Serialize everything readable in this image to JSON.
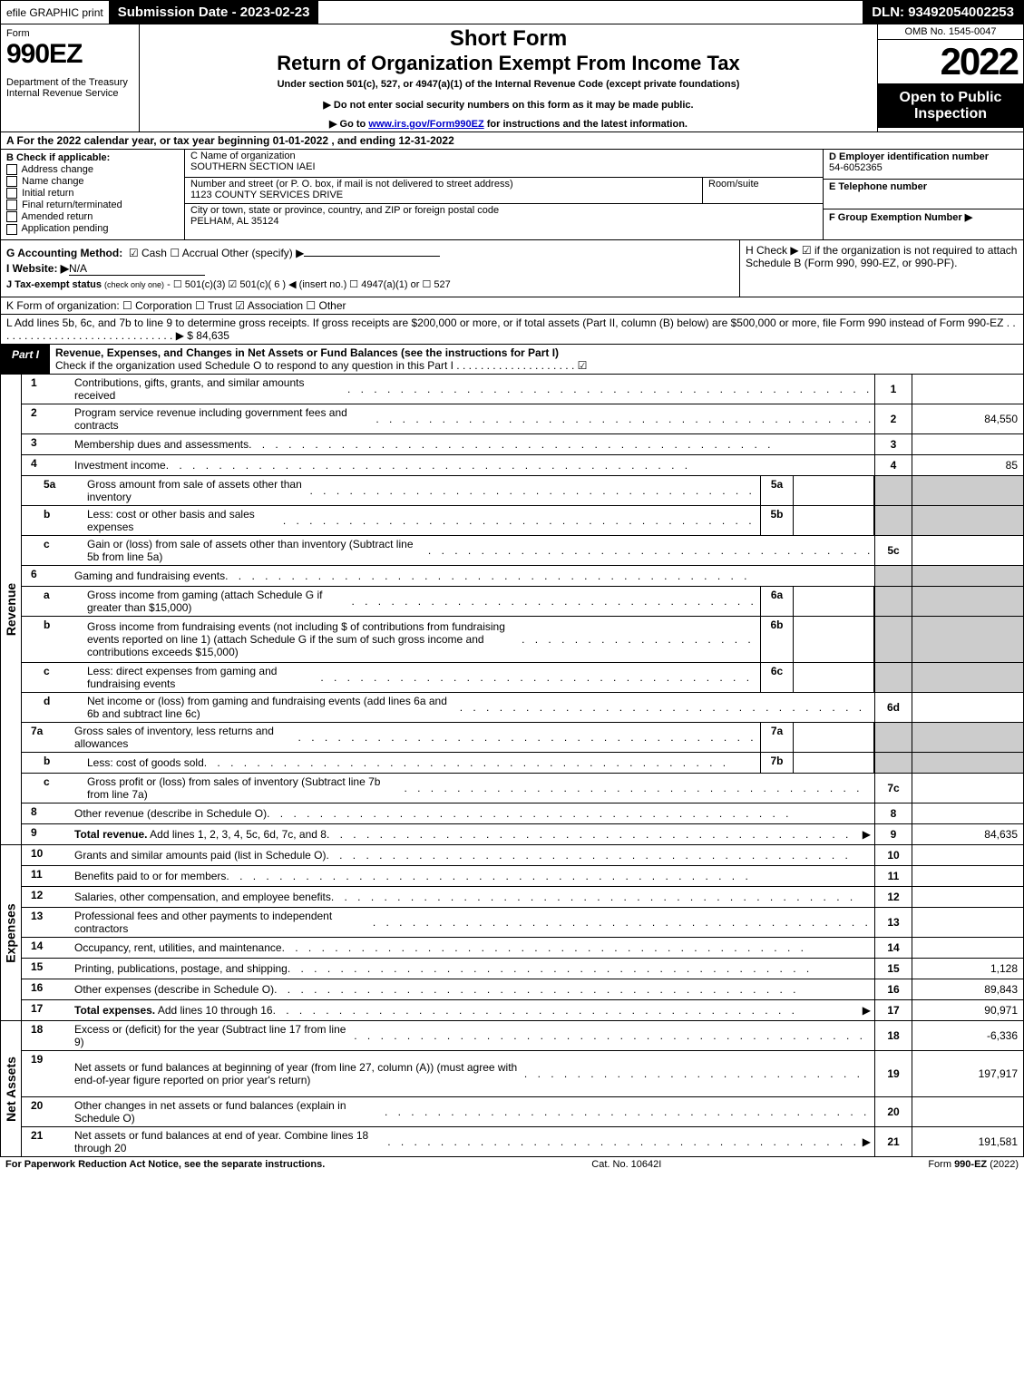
{
  "topbar": {
    "efile": "efile GRAPHIC print",
    "submission": "Submission Date - 2023-02-23",
    "dln": "DLN: 93492054002253"
  },
  "header": {
    "form_word": "Form",
    "form_number": "990EZ",
    "department": "Department of the Treasury\nInternal Revenue Service",
    "short_form": "Short Form",
    "return_title": "Return of Organization Exempt From Income Tax",
    "under_section": "Under section 501(c), 527, or 4947(a)(1) of the Internal Revenue Code (except private foundations)",
    "do_not": "▶ Do not enter social security numbers on this form as it may be made public.",
    "goto": "▶ Go to www.irs.gov/Form990EZ for instructions and the latest information.",
    "irs_link": "www.irs.gov/Form990EZ",
    "omb": "OMB No. 1545-0047",
    "year": "2022",
    "open_to_public": "Open to Public Inspection"
  },
  "row_a": "A  For the 2022 calendar year, or tax year beginning 01-01-2022  , and ending 12-31-2022",
  "section_b": {
    "label": "B  Check if applicable:",
    "items": [
      "Address change",
      "Name change",
      "Initial return",
      "Final return/terminated",
      "Amended return",
      "Application pending"
    ],
    "c_label": "C Name of organization",
    "c_value": "SOUTHERN SECTION IAEI",
    "street_label": "Number and street (or P. O. box, if mail is not delivered to street address)",
    "street_value": "1123 COUNTY SERVICES DRIVE",
    "room_label": "Room/suite",
    "city_label": "City or town, state or province, country, and ZIP or foreign postal code",
    "city_value": "PELHAM, AL  35124",
    "d_label": "D Employer identification number",
    "d_value": "54-6052365",
    "e_label": "E Telephone number",
    "f_label": "F Group Exemption Number  ▶"
  },
  "section_ghi": {
    "g_label": "G Accounting Method:",
    "g_options": "☑ Cash  ☐ Accrual  Other (specify) ▶",
    "i_label": "I Website: ▶",
    "i_value": "N/A",
    "j_label": "J Tax-exempt status (check only one) - ☐ 501(c)(3) ☑ 501(c)( 6 ) ◀ (insert no.) ☐ 4947(a)(1) or ☐ 527",
    "h_text": "H  Check ▶ ☑ if the organization is not required to attach Schedule B (Form 990, 990-EZ, or 990-PF)."
  },
  "row_k": "K Form of organization:  ☐ Corporation  ☐ Trust  ☑ Association  ☐ Other",
  "row_l": "L Add lines 5b, 6c, and 7b to line 9 to determine gross receipts. If gross receipts are $200,000 or more, or if total assets (Part II, column (B) below) are $500,000 or more, file Form 990 instead of Form 990-EZ . . . . . . . . . . . . . . . . . . . . . . . . . . . . . . ▶ $ 84,635",
  "part1_header": {
    "label": "Part I",
    "title": "Revenue, Expenses, and Changes in Net Assets or Fund Balances (see the instructions for Part I)",
    "checknote": "Check if the organization used Schedule O to respond to any question in this Part I . . . . . . . . . . . . . . . . . . . . ☑"
  },
  "revenue_lines": [
    {
      "num": "1",
      "desc": "Contributions, gifts, grants, and similar amounts received",
      "box": "1",
      "val": ""
    },
    {
      "num": "2",
      "desc": "Program service revenue including government fees and contracts",
      "box": "2",
      "val": "84,550"
    },
    {
      "num": "3",
      "desc": "Membership dues and assessments",
      "box": "3",
      "val": ""
    },
    {
      "num": "4",
      "desc": "Investment income",
      "box": "4",
      "val": "85"
    },
    {
      "num": "5a",
      "sub": true,
      "desc": "Gross amount from sale of assets other than inventory",
      "inline_box": "5a",
      "inline_val": "",
      "box": "",
      "val": "",
      "shaded": true
    },
    {
      "num": "b",
      "sub": true,
      "desc": "Less: cost or other basis and sales expenses",
      "inline_box": "5b",
      "inline_val": "",
      "box": "",
      "val": "",
      "shaded": true
    },
    {
      "num": "c",
      "sub": true,
      "desc": "Gain or (loss) from sale of assets other than inventory (Subtract line 5b from line 5a)",
      "box": "5c",
      "val": ""
    },
    {
      "num": "6",
      "desc": "Gaming and fundraising events",
      "box": "",
      "val": "",
      "shaded": true,
      "noboxborder": true
    },
    {
      "num": "a",
      "sub": true,
      "desc": "Gross income from gaming (attach Schedule G if greater than $15,000)",
      "inline_box": "6a",
      "inline_val": "",
      "box": "",
      "val": "",
      "shaded": true
    },
    {
      "num": "b",
      "sub": true,
      "desc": "Gross income from fundraising events (not including $                  of contributions from fundraising events reported on line 1) (attach Schedule G if the sum of such gross income and contributions exceeds $15,000)",
      "inline_box": "6b",
      "inline_val": "",
      "box": "",
      "val": "",
      "shaded": true,
      "tall": true
    },
    {
      "num": "c",
      "sub": true,
      "desc": "Less: direct expenses from gaming and fundraising events",
      "inline_box": "6c",
      "inline_val": "",
      "box": "",
      "val": "",
      "shaded": true
    },
    {
      "num": "d",
      "sub": true,
      "desc": "Net income or (loss) from gaming and fundraising events (add lines 6a and 6b and subtract line 6c)",
      "box": "6d",
      "val": ""
    },
    {
      "num": "7a",
      "sub": false,
      "desc": "Gross sales of inventory, less returns and allowances",
      "inline_box": "7a",
      "inline_val": "",
      "box": "",
      "val": "",
      "shaded": true
    },
    {
      "num": "b",
      "sub": true,
      "desc": "Less: cost of goods sold",
      "inline_box": "7b",
      "inline_val": "",
      "box": "",
      "val": "",
      "shaded": true
    },
    {
      "num": "c",
      "sub": true,
      "desc": "Gross profit or (loss) from sales of inventory (Subtract line 7b from line 7a)",
      "box": "7c",
      "val": ""
    },
    {
      "num": "8",
      "desc": "Other revenue (describe in Schedule O)",
      "box": "8",
      "val": ""
    },
    {
      "num": "9",
      "desc": "Total revenue. Add lines 1, 2, 3, 4, 5c, 6d, 7c, and 8",
      "box": "9",
      "val": "84,635",
      "bold": true,
      "arrow": true
    }
  ],
  "expense_lines": [
    {
      "num": "10",
      "desc": "Grants and similar amounts paid (list in Schedule O)",
      "box": "10",
      "val": ""
    },
    {
      "num": "11",
      "desc": "Benefits paid to or for members",
      "box": "11",
      "val": ""
    },
    {
      "num": "12",
      "desc": "Salaries, other compensation, and employee benefits",
      "box": "12",
      "val": ""
    },
    {
      "num": "13",
      "desc": "Professional fees and other payments to independent contractors",
      "box": "13",
      "val": ""
    },
    {
      "num": "14",
      "desc": "Occupancy, rent, utilities, and maintenance",
      "box": "14",
      "val": ""
    },
    {
      "num": "15",
      "desc": "Printing, publications, postage, and shipping",
      "box": "15",
      "val": "1,128"
    },
    {
      "num": "16",
      "desc": "Other expenses (describe in Schedule O)",
      "box": "16",
      "val": "89,843"
    },
    {
      "num": "17",
      "desc": "Total expenses. Add lines 10 through 16",
      "box": "17",
      "val": "90,971",
      "bold": true,
      "arrow": true
    }
  ],
  "netasset_lines": [
    {
      "num": "18",
      "desc": "Excess or (deficit) for the year (Subtract line 17 from line 9)",
      "box": "18",
      "val": "-6,336"
    },
    {
      "num": "19",
      "desc": "Net assets or fund balances at beginning of year (from line 27, column (A)) (must agree with end-of-year figure reported on prior year's return)",
      "box": "19",
      "val": "197,917",
      "tall": true
    },
    {
      "num": "20",
      "desc": "Other changes in net assets or fund balances (explain in Schedule O)",
      "box": "20",
      "val": ""
    },
    {
      "num": "21",
      "desc": "Net assets or fund balances at end of year. Combine lines 18 through 20",
      "box": "21",
      "val": "191,581",
      "arrow": true
    }
  ],
  "side_labels": {
    "revenue": "Revenue",
    "expenses": "Expenses",
    "netassets": "Net Assets"
  },
  "footer": {
    "left": "For Paperwork Reduction Act Notice, see the separate instructions.",
    "mid": "Cat. No. 10642I",
    "right": "Form 990-EZ (2022)"
  }
}
